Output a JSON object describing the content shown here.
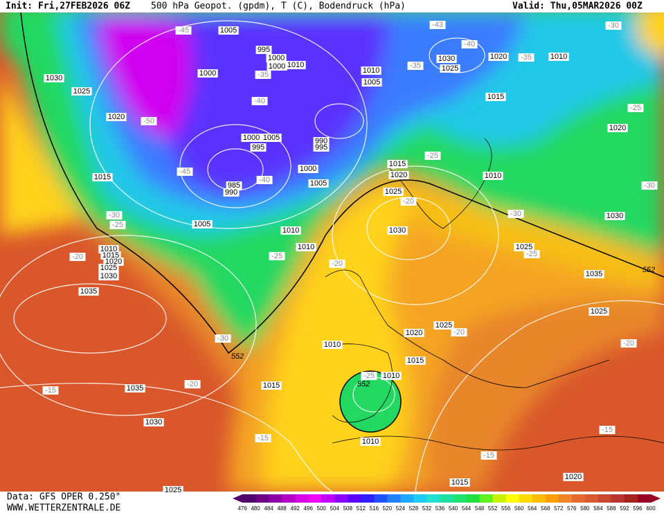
{
  "header": {
    "init": "Init: Fri,27FEB2026 06Z",
    "title": "500 hPa Geopot. (gpdm), T (C), Bodendruck (hPa)",
    "valid": "Valid: Thu,05MAR2026 00Z"
  },
  "footer": {
    "source": "Data: GFS OPER 0.250°",
    "site": "WWW.WETTERZENTRALE.DE"
  },
  "colorbar": {
    "ticks": [
      476,
      480,
      484,
      488,
      492,
      496,
      500,
      504,
      508,
      512,
      516,
      520,
      524,
      528,
      532,
      536,
      540,
      544,
      548,
      552,
      556,
      560,
      564,
      568,
      572,
      576,
      580,
      584,
      588,
      592,
      596,
      600
    ],
    "colors": [
      "#50006a",
      "#6e0088",
      "#8c00a8",
      "#b000c8",
      "#d400e6",
      "#f000ff",
      "#c000ff",
      "#8a00ff",
      "#5a00ff",
      "#3020ff",
      "#2050ff",
      "#2080ff",
      "#20a8ff",
      "#20ccf4",
      "#20e0d0",
      "#20e0a0",
      "#20e070",
      "#20e040",
      "#60f020",
      "#c8f000",
      "#ffff00",
      "#ffdc00",
      "#ffbc00",
      "#ffa000",
      "#f08428",
      "#e46c30",
      "#d85a30",
      "#c84830",
      "#b83630",
      "#a82020",
      "#980024"
    ]
  },
  "pressure_labels": [
    "1005",
    "995",
    "1000",
    "1000",
    "1010",
    "1000",
    "1030",
    "1025",
    "1020",
    "1000",
    "1005",
    "995",
    "990",
    "995",
    "1000",
    "1015",
    "985",
    "990",
    "1005",
    "1005",
    "1010",
    "1010",
    "1010",
    "1015",
    "1020",
    "1025",
    "1030",
    "1035",
    "1035",
    "1030",
    "1025",
    "1030",
    "1025",
    "1020",
    "1010",
    "1010",
    "1005",
    "1015",
    "1020",
    "1015",
    "1020",
    "1010",
    "1025",
    "1030",
    "1030",
    "1025",
    "1035",
    "1025",
    "1025",
    "1020",
    "1010",
    "1015",
    "1010",
    "1015",
    "1010",
    "1015",
    "1020"
  ],
  "temperature_labels": [
    "-45",
    "-35",
    "-40",
    "-50",
    "-45",
    "-40",
    "-30",
    "-25",
    "-20",
    "-25",
    "-30",
    "-20",
    "-15",
    "-43",
    "-40",
    "-35",
    "-35",
    "-30",
    "-25",
    "-25",
    "-30",
    "-20",
    "-30",
    "-25",
    "-20",
    "-20",
    "-20",
    "-25",
    "-15",
    "-15",
    "-15"
  ],
  "height_labels": [
    "552",
    "552",
    "552"
  ]
}
